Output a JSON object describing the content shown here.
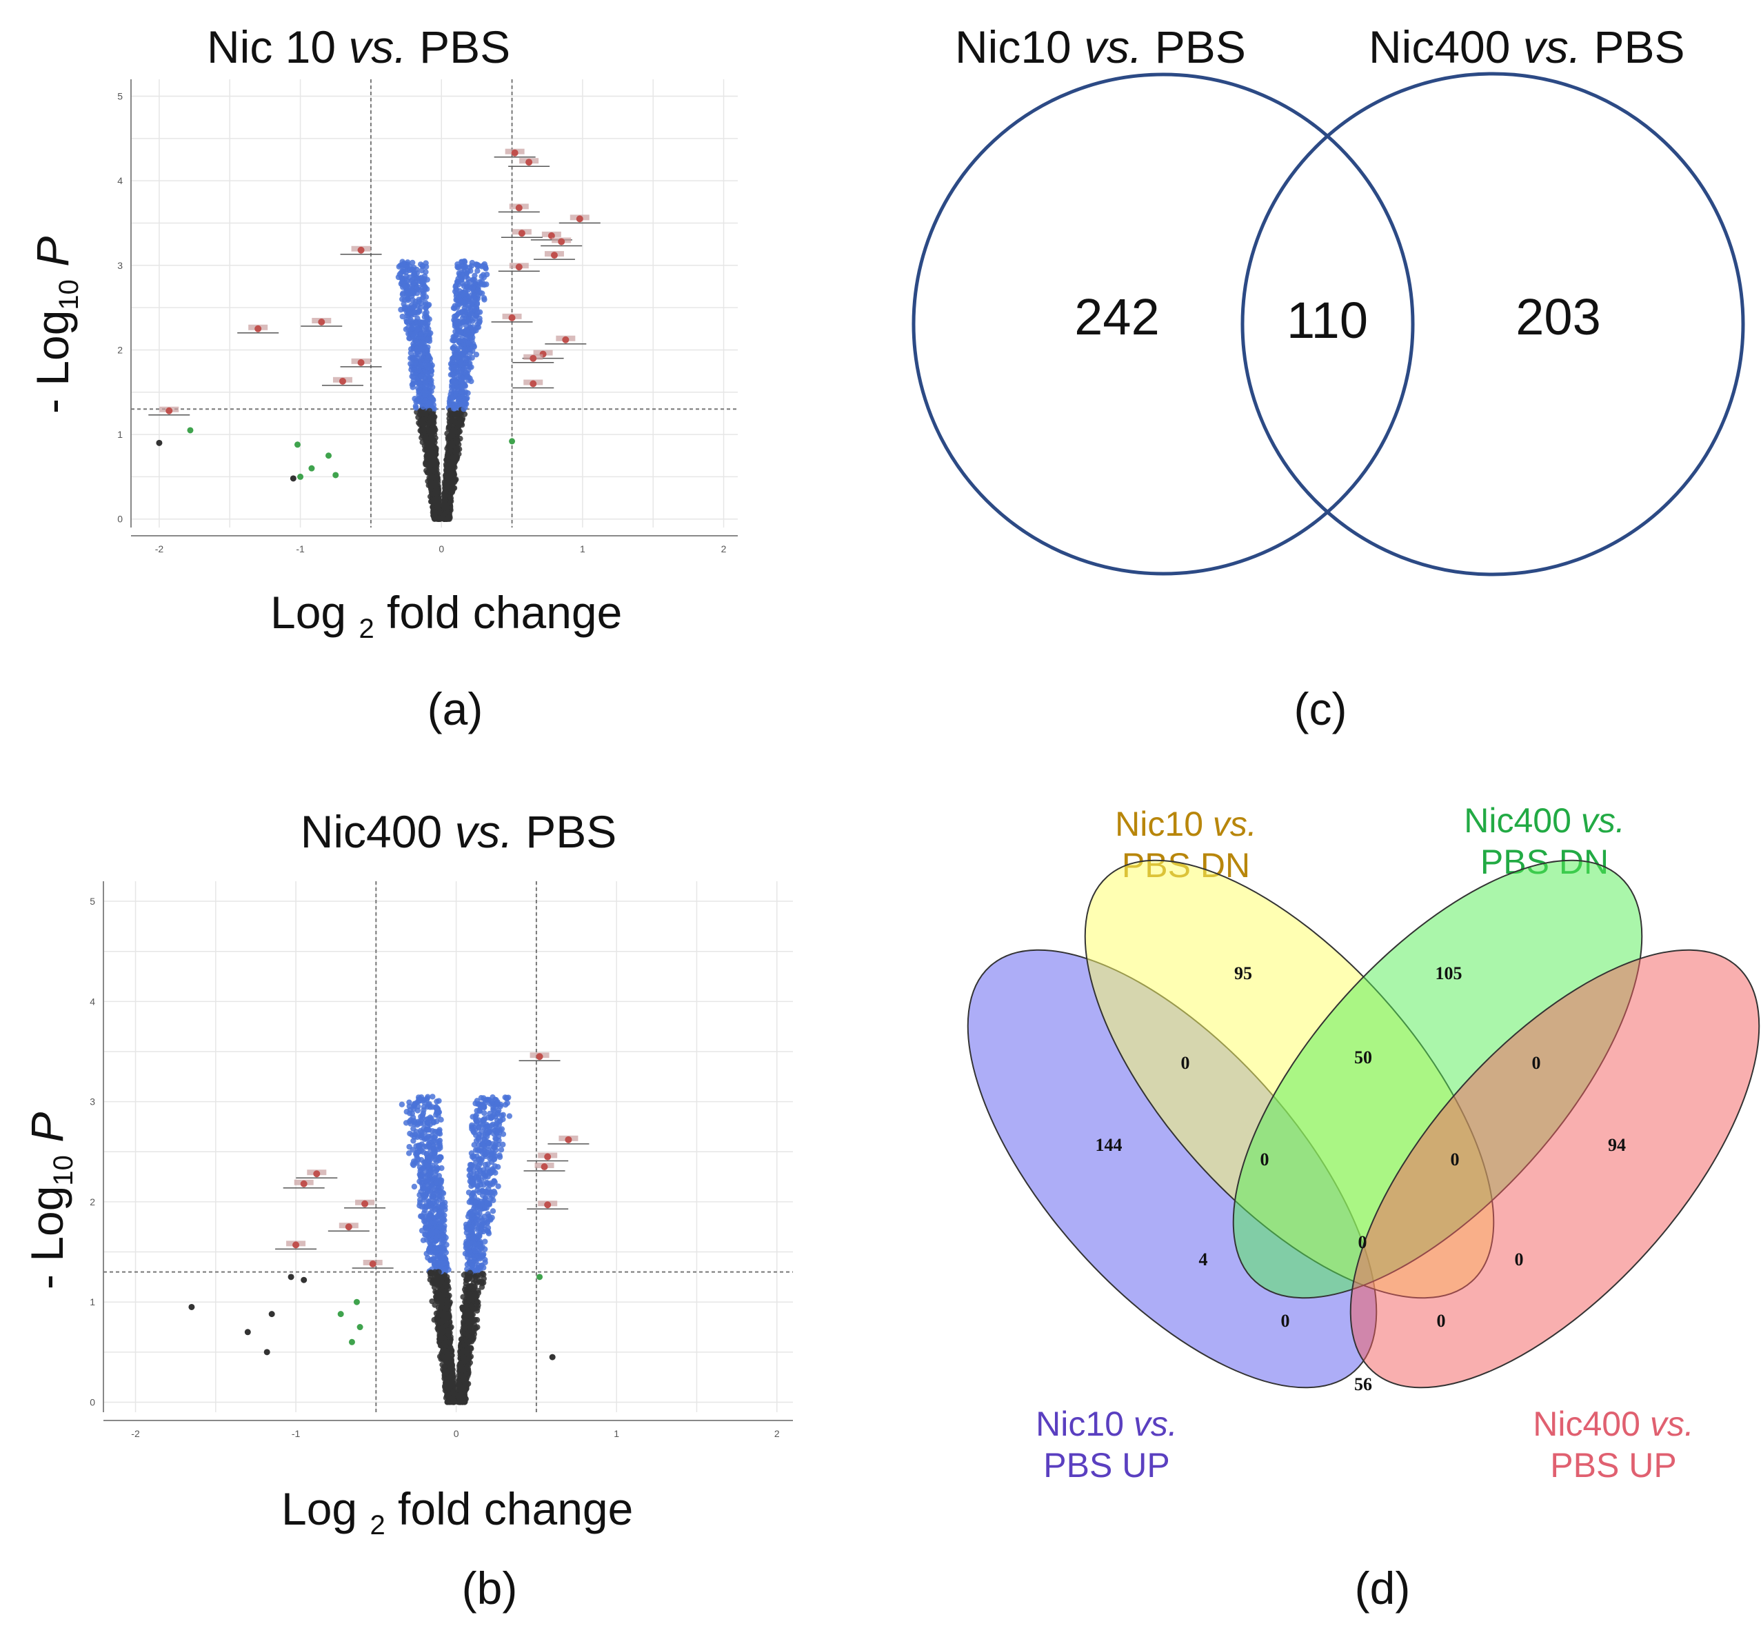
{
  "panels": {
    "a": {
      "label": "(a)",
      "title_main": "Nic 10",
      "title_vs": "vs.",
      "title_ref": "PBS",
      "chart_data": {
        "type": "scatter",
        "title": "Nic 10 vs. PBS",
        "xlabel": "Log 2 fold change",
        "ylabel": "- Log10 P",
        "xlim": [
          -2.2,
          2.1
        ],
        "ylim": [
          -0.1,
          5.2
        ],
        "xticks": [
          -2,
          -1,
          0,
          1,
          2
        ],
        "yticks": [
          0,
          1,
          2,
          3,
          4,
          5
        ],
        "fc_threshold": [
          -0.5,
          0.5
        ],
        "p_threshold": 1.3,
        "series": [
          {
            "name": "significant (blue)",
            "color": "#4a73d8"
          },
          {
            "name": "not significant (grey)",
            "color": "#333333"
          },
          {
            "name": "fold-change only (green)",
            "color": "#3fa34d"
          },
          {
            "name": "labelled (red)",
            "color": "#c0504d"
          }
        ],
        "labelled_points": [
          [
            0.52,
            4.33
          ],
          [
            0.62,
            4.22
          ],
          [
            0.55,
            3.68
          ],
          [
            0.98,
            3.55
          ],
          [
            0.78,
            3.35
          ],
          [
            0.85,
            3.28
          ],
          [
            0.57,
            3.38
          ],
          [
            0.8,
            3.12
          ],
          [
            -0.57,
            3.18
          ],
          [
            0.55,
            2.98
          ],
          [
            -1.3,
            2.25
          ],
          [
            -0.85,
            2.33
          ],
          [
            0.5,
            2.38
          ],
          [
            0.88,
            2.12
          ],
          [
            0.72,
            1.95
          ],
          [
            0.65,
            1.9
          ],
          [
            -0.57,
            1.85
          ],
          [
            -0.7,
            1.63
          ],
          [
            0.65,
            1.6
          ],
          [
            -1.93,
            1.28
          ]
        ],
        "green_points": [
          [
            -1.78,
            1.05
          ],
          [
            -1.02,
            0.88
          ],
          [
            -0.92,
            0.6
          ],
          [
            -1.0,
            0.5
          ],
          [
            -0.8,
            0.75
          ],
          [
            -0.75,
            0.52
          ],
          [
            0.5,
            0.92
          ]
        ],
        "extra_grey_points": [
          [
            -2.0,
            0.9
          ],
          [
            -1.05,
            0.48
          ]
        ]
      }
    },
    "b": {
      "label": "(b)",
      "title_main": "Nic400",
      "title_vs": "vs.",
      "title_ref": "PBS",
      "chart_data": {
        "type": "scatter",
        "title": "Nic400 vs. PBS",
        "xlabel": "Log 2 fold change",
        "ylabel": "- Log10 P",
        "xlim": [
          -2.2,
          2.1
        ],
        "ylim": [
          -0.1,
          5.2
        ],
        "xticks": [
          -2,
          -1,
          0,
          1,
          2
        ],
        "yticks": [
          0,
          1,
          2,
          3,
          4,
          5
        ],
        "fc_threshold": [
          -0.5,
          0.5
        ],
        "p_threshold": 1.3,
        "series": [
          {
            "name": "significant (blue)",
            "color": "#4a73d8"
          },
          {
            "name": "not significant (grey)",
            "color": "#333333"
          },
          {
            "name": "fold-change only (green)",
            "color": "#3fa34d"
          },
          {
            "name": "labelled (red)",
            "color": "#c0504d"
          }
        ],
        "labelled_points": [
          [
            0.52,
            3.45
          ],
          [
            0.7,
            2.62
          ],
          [
            0.57,
            2.45
          ],
          [
            0.55,
            2.35
          ],
          [
            -0.87,
            2.28
          ],
          [
            -0.95,
            2.18
          ],
          [
            -0.57,
            1.98
          ],
          [
            0.57,
            1.97
          ],
          [
            -0.67,
            1.75
          ],
          [
            -1.0,
            1.57
          ],
          [
            -0.52,
            1.38
          ]
        ],
        "green_points": [
          [
            -0.62,
            1.0
          ],
          [
            -0.72,
            0.88
          ],
          [
            -0.6,
            0.75
          ],
          [
            -0.65,
            0.6
          ],
          [
            0.52,
            1.25
          ]
        ],
        "extra_grey_points": [
          [
            -1.65,
            0.95
          ],
          [
            -1.3,
            0.7
          ],
          [
            -1.15,
            0.88
          ],
          [
            -1.18,
            0.5
          ],
          [
            -1.03,
            1.25
          ],
          [
            -0.95,
            1.22
          ],
          [
            0.6,
            0.45
          ]
        ]
      }
    },
    "c": {
      "label": "(c)",
      "set_left_main": "Nic10",
      "set_left_vs": "vs.",
      "set_left_ref": "PBS",
      "set_right_main": "Nic400",
      "set_right_vs": "vs.",
      "set_right_ref": "PBS",
      "chart_data": {
        "type": "venn2",
        "sets": [
          "Nic10 vs. PBS",
          "Nic400 vs. PBS"
        ],
        "only_left": "242",
        "intersection": "110",
        "only_right": "203"
      }
    },
    "d": {
      "label": "(d)",
      "labels": {
        "nic10_dn_l1": "Nic10",
        "nic10_dn_vs": "vs.",
        "nic10_dn_l2": "PBS DN",
        "nic400_dn_l1": "Nic400",
        "nic400_dn_vs": "vs.",
        "nic400_dn_l2": "PBS DN",
        "nic10_up_l1": "Nic10",
        "nic10_up_vs": "vs.",
        "nic10_up_l2": "PBS UP",
        "nic400_up_l1": "Nic400",
        "nic400_up_vs": "vs.",
        "nic400_up_l2": "PBS UP"
      },
      "colors": {
        "nic10_up": "#5b5bf0",
        "nic10_dn": "#ffff66",
        "nic400_dn": "#55ee55",
        "nic400_up": "#f46060",
        "label_nic10_dn": "#b8860b",
        "label_nic400_dn": "#22aa44",
        "label_nic10_up": "#5a3fc0",
        "label_nic400_up": "#e06070"
      },
      "chart_data": {
        "type": "venn4",
        "sets": [
          "Nic10 vs. PBS UP",
          "Nic10 vs. PBS DN",
          "Nic400 vs. PBS DN",
          "Nic400 vs. PBS UP"
        ],
        "regions": {
          "nic10_up_only": "144",
          "nic10_dn_only": "95",
          "nic400_dn_only": "105",
          "nic400_up_only": "94",
          "up10_dn10": "0",
          "dn10_dn400": "50",
          "dn400_up400": "0",
          "up10_dn400": "4",
          "dn10_up400": "0",
          "up10_up400": "56",
          "up10_dn10_dn400": "0",
          "dn10_dn400_up400": "0",
          "up10_dn400_up400": "0",
          "up10_dn10_up400": "0",
          "all_four": "0"
        }
      }
    }
  }
}
